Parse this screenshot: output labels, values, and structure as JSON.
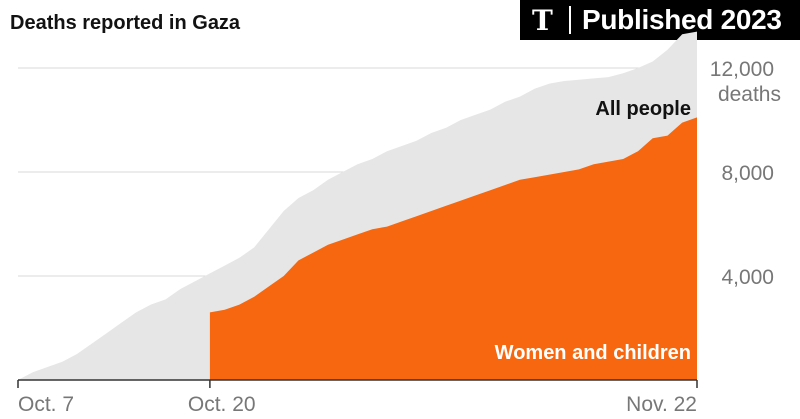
{
  "header": {
    "title": "Deaths reported in Gaza",
    "badge_logo": "T",
    "badge_text": "Published 2023"
  },
  "colors": {
    "all_people": "#e6e6e6",
    "women_children": "#f7670f",
    "axis": "#333333",
    "grid": "#d9d9d9",
    "tick_text": "#777777"
  },
  "chart_data": {
    "type": "area",
    "title": "Deaths reported in Gaza",
    "x_ticks": [
      "Oct. 7",
      "Oct. 20",
      "Nov. 22"
    ],
    "y_ticks": [
      "4,000",
      "8,000",
      "12,000"
    ],
    "y_unit": "deaths",
    "ylim": [
      0,
      14000
    ],
    "xlim": [
      "2023-10-07",
      "2023-11-22"
    ],
    "grid": true,
    "series": [
      {
        "name": "All people",
        "x": [
          "2023-10-07",
          "2023-10-08",
          "2023-10-09",
          "2023-10-10",
          "2023-10-11",
          "2023-10-12",
          "2023-10-13",
          "2023-10-14",
          "2023-10-15",
          "2023-10-16",
          "2023-10-17",
          "2023-10-18",
          "2023-10-19",
          "2023-10-20",
          "2023-10-21",
          "2023-10-22",
          "2023-10-23",
          "2023-10-24",
          "2023-10-25",
          "2023-10-26",
          "2023-10-27",
          "2023-10-28",
          "2023-10-29",
          "2023-10-30",
          "2023-10-31",
          "2023-11-01",
          "2023-11-02",
          "2023-11-03",
          "2023-11-04",
          "2023-11-05",
          "2023-11-06",
          "2023-11-07",
          "2023-11-08",
          "2023-11-09",
          "2023-11-10",
          "2023-11-11",
          "2023-11-12",
          "2023-11-13",
          "2023-11-14",
          "2023-11-15",
          "2023-11-16",
          "2023-11-17",
          "2023-11-18",
          "2023-11-19",
          "2023-11-20",
          "2023-11-21",
          "2023-11-22"
        ],
        "values": [
          0,
          300,
          500,
          700,
          1000,
          1400,
          1800,
          2200,
          2600,
          2900,
          3100,
          3500,
          3800,
          4100,
          4400,
          4700,
          5100,
          5800,
          6500,
          7000,
          7300,
          7700,
          8000,
          8300,
          8500,
          8800,
          9000,
          9200,
          9500,
          9700,
          10000,
          10200,
          10400,
          10700,
          10900,
          11200,
          11400,
          11500,
          11550,
          11600,
          11650,
          11800,
          12000,
          12250,
          12700,
          13300,
          13400
        ]
      },
      {
        "name": "Women and children",
        "x": [
          "2023-10-20",
          "2023-10-21",
          "2023-10-22",
          "2023-10-23",
          "2023-10-24",
          "2023-10-25",
          "2023-10-26",
          "2023-10-27",
          "2023-10-28",
          "2023-10-29",
          "2023-10-30",
          "2023-10-31",
          "2023-11-01",
          "2023-11-02",
          "2023-11-03",
          "2023-11-04",
          "2023-11-05",
          "2023-11-06",
          "2023-11-07",
          "2023-11-08",
          "2023-11-09",
          "2023-11-10",
          "2023-11-11",
          "2023-11-12",
          "2023-11-13",
          "2023-11-14",
          "2023-11-15",
          "2023-11-16",
          "2023-11-17",
          "2023-11-18",
          "2023-11-19",
          "2023-11-20",
          "2023-11-21",
          "2023-11-22"
        ],
        "values": [
          2600,
          2700,
          2900,
          3200,
          3600,
          4000,
          4600,
          4900,
          5200,
          5400,
          5600,
          5800,
          5900,
          6100,
          6300,
          6500,
          6700,
          6900,
          7100,
          7300,
          7500,
          7700,
          7800,
          7900,
          8000,
          8100,
          8300,
          8400,
          8500,
          8800,
          9300,
          9400,
          9900,
          10100
        ]
      }
    ]
  }
}
